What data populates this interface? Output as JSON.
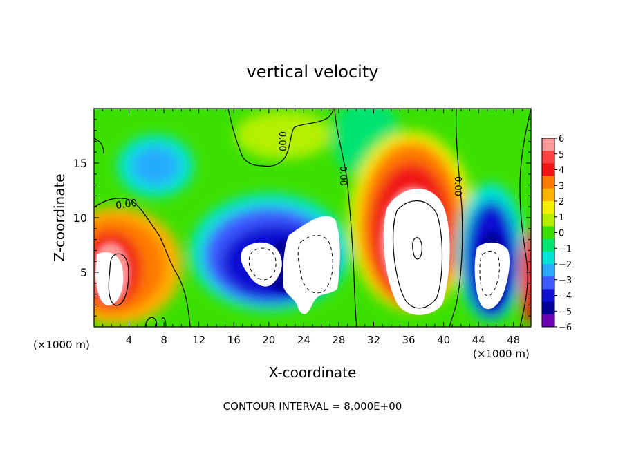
{
  "chart_data": {
    "type": "heatmap",
    "title": "vertical velocity",
    "xlabel": "X-coordinate",
    "ylabel": "Z-coordinate",
    "x_unit_left": "(×1000 m)",
    "x_unit_right": "(×1000 m)",
    "footer": "CONTOUR INTERVAL = 8.000E+00",
    "xlim": [
      0,
      50
    ],
    "ylim": [
      0,
      20
    ],
    "x_ticks": [
      4,
      8,
      12,
      16,
      20,
      24,
      28,
      32,
      36,
      40,
      44,
      48
    ],
    "y_ticks": [
      5,
      10,
      15
    ],
    "colorbar": {
      "labels": [
        "6",
        "5",
        "4",
        "3",
        "2",
        "1",
        "0",
        "−1",
        "−2",
        "−3",
        "−4",
        "−5",
        "−6"
      ],
      "colors": [
        "#ff9a9a",
        "#ff4040",
        "#f01414",
        "#ff7a00",
        "#ffb400",
        "#f4f000",
        "#b4f000",
        "#3ce000",
        "#00e470",
        "#00e4d8",
        "#28aaff",
        "#3c5aff",
        "#0f0fd2",
        "#000096",
        "#6e00b4"
      ]
    },
    "contour_labels": [
      "0.00",
      "0.00",
      "0.00",
      "0.00"
    ],
    "features": [
      {
        "type": "updraft",
        "x": 2,
        "z": 5.5,
        "peak": 9
      },
      {
        "type": "updraft",
        "x": 36,
        "z": 8,
        "peak": 12
      },
      {
        "type": "downdraft",
        "x": 21,
        "z": 6,
        "peak": -8
      },
      {
        "type": "downdraft",
        "x": 45,
        "z": 5,
        "peak": -8
      }
    ]
  }
}
